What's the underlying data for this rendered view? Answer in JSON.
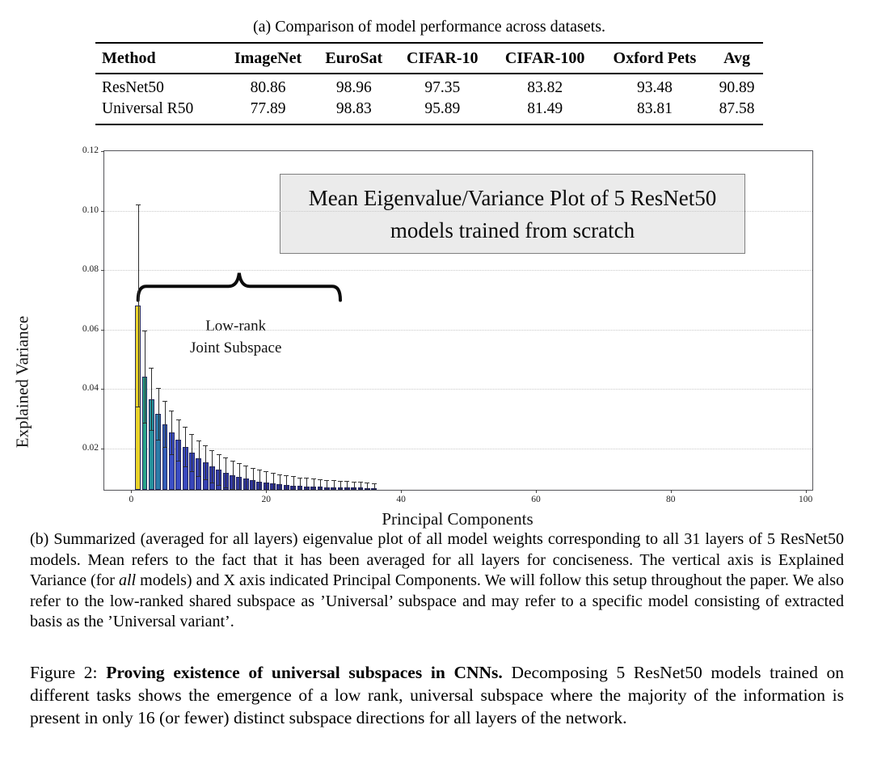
{
  "table": {
    "caption": "(a) Comparison of model performance across datasets.",
    "columns": [
      "Method",
      "ImageNet",
      "EuroSat",
      "CIFAR-10",
      "CIFAR-100",
      "Oxford Pets",
      "Avg"
    ],
    "rows": [
      {
        "method": "ResNet50",
        "values": [
          "80.86",
          "98.96",
          "97.35",
          "83.82",
          "93.48",
          "90.89"
        ]
      },
      {
        "method": "Universal R50",
        "values": [
          "77.89",
          "98.83",
          "95.89",
          "81.49",
          "83.81",
          "87.58"
        ]
      }
    ]
  },
  "chart_data": {
    "type": "bar",
    "title": "Mean Eigenvalue/Variance Plot of 5 ResNet50 models trained from scratch",
    "title_line1": "Mean Eigenvalue/Variance Plot of  5 ResNet50",
    "title_line2": "models trained from scratch",
    "xlabel": "Principal Components",
    "ylabel": "Explained Variance",
    "x_ticks": [
      0,
      20,
      40,
      60,
      80,
      100
    ],
    "y_ticks": [
      0.02,
      0.04,
      0.06,
      0.08,
      0.1,
      0.12
    ],
    "xlim": [
      -4,
      101
    ],
    "ylim": [
      0.006,
      0.12
    ],
    "grid": "horizontal-dotted",
    "legend": "none",
    "x": [
      1,
      2,
      3,
      4,
      5,
      6,
      7,
      8,
      9,
      10,
      11,
      12,
      13,
      14,
      15,
      16,
      17,
      18,
      19,
      20,
      21,
      22,
      23,
      24,
      25,
      26,
      27,
      28,
      29,
      30,
      31,
      32,
      33,
      34,
      35,
      36
    ],
    "values": [
      0.068,
      0.044,
      0.0365,
      0.0316,
      0.0281,
      0.0254,
      0.0228,
      0.0205,
      0.0185,
      0.0167,
      0.0152,
      0.0139,
      0.0128,
      0.0118,
      0.011,
      0.0103,
      0.0097,
      0.0092,
      0.0088,
      0.0084,
      0.0081,
      0.0078,
      0.0076,
      0.0074,
      0.0073,
      0.0072,
      0.0071,
      0.007,
      0.0069,
      0.0069,
      0.0068,
      0.0068,
      0.0067,
      0.0067,
      0.0066,
      0.0066
    ],
    "errors": [
      0.034,
      0.0155,
      0.0105,
      0.0086,
      0.0078,
      0.0073,
      0.0069,
      0.0066,
      0.0063,
      0.006,
      0.0057,
      0.0055,
      0.0052,
      0.005,
      0.0048,
      0.0046,
      0.0044,
      0.0042,
      0.0041,
      0.0039,
      0.0037,
      0.0035,
      0.0033,
      0.0031,
      0.0029,
      0.0028,
      0.0026,
      0.0025,
      0.0024,
      0.0023,
      0.0022,
      0.0021,
      0.002,
      0.0019,
      0.0018,
      0.0017
    ],
    "bar_color_stops": [
      {
        "at": 1,
        "color": "#e9d32b"
      },
      {
        "at": 2,
        "color": "#2aa489"
      },
      {
        "at": 3,
        "color": "#25909b"
      },
      {
        "at": 4,
        "color": "#2d7ca8"
      },
      {
        "at": 5,
        "color": "#335eb8"
      },
      {
        "at": 6,
        "color": "#3c4fc6"
      },
      {
        "at": 10,
        "color": "#3743b4"
      },
      {
        "at": 16,
        "color": "#31379f"
      },
      {
        "at": 24,
        "color": "#2b2d8d"
      },
      {
        "at": 36,
        "color": "#272575"
      }
    ],
    "annotation": {
      "line1": "Low-rank",
      "line2": "Joint Subspace",
      "brace_from": 1,
      "brace_to": 31,
      "brace_body_y": 0.0745,
      "brace_end_y": 0.0698,
      "brace_tip_y": 0.079,
      "text_center_x": 15.5,
      "text_top_y": 0.0648
    },
    "colors": {
      "title_box_bg": "#ebebeb",
      "title_box_border": "#7f7f7f",
      "bar_edge": "#23265c",
      "error_bar": "#2e2e2e",
      "gridline": "#c9c9c9",
      "frame": "#55555a"
    }
  },
  "caption_b": {
    "part1": "(b) Summarized (averaged for all layers) eigenvalue plot of all model weights corresponding to all 31 layers of 5 ResNet50 models. Mean refers to the fact that it has been averaged for all layers for conciseness. The vertical axis is Explained Variance (for ",
    "italic": "all",
    "part2": " models) and X axis indicated Principal Components. We will follow this setup throughout the paper. We also refer to the low-ranked shared subspace as ’Universal’ subspace and may refer to a specific model consisting of extracted basis as the ’Universal variant’."
  },
  "figure_caption": {
    "label": "Figure 2: ",
    "bold": "Proving existence of universal subspaces in CNNs.",
    "rest": " Decomposing 5 ResNet50 models trained on different tasks shows the emergence of a low rank, universal subspace where the majority of the information is present in only 16 (or fewer) distinct subspace directions for all layers of the network."
  }
}
